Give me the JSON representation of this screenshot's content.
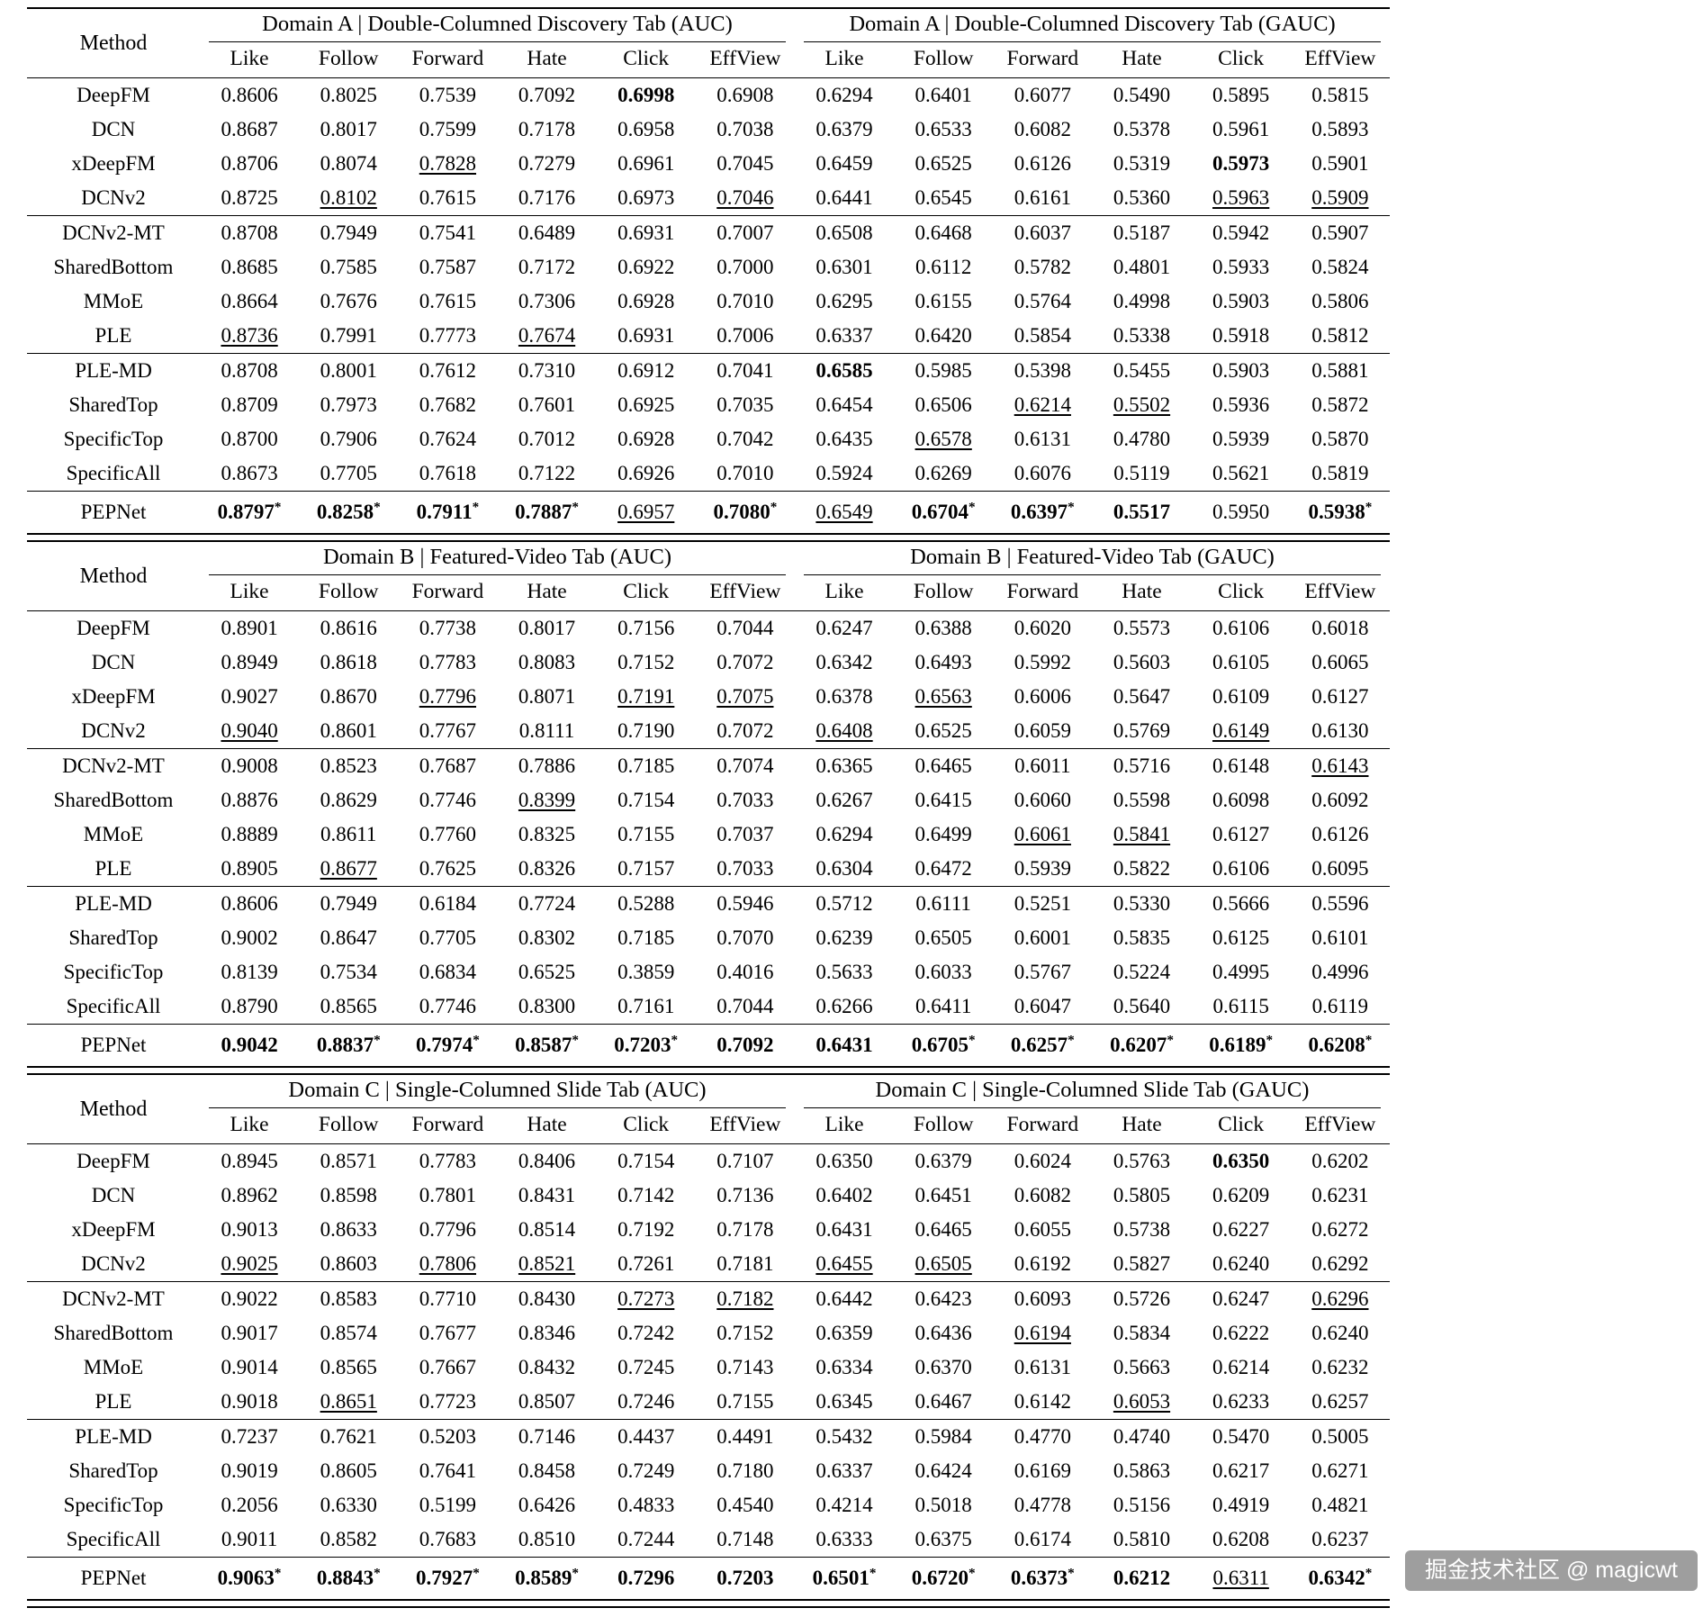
{
  "watermark": {
    "text": "掘金技术社区 @ magicwt"
  },
  "table_layout": {
    "method_header": "Method",
    "metrics": [
      "Like",
      "Follow",
      "Forward",
      "Hate",
      "Click",
      "EffView"
    ]
  },
  "tables": [
    {
      "id": "domain-a",
      "auc_title": "Domain A | Double-Columned Discovery Tab (AUC)",
      "gauc_title": "Domain A | Double-Columned Discovery Tab (GAUC)",
      "groups": [
        [
          {
            "method": "DeepFM",
            "auc": [
              "0.8606",
              "0.8025",
              "0.7539",
              "0.7092",
              "0.6998|b",
              "0.6908"
            ],
            "gauc": [
              "0.6294",
              "0.6401",
              "0.6077",
              "0.5490",
              "0.5895",
              "0.5815"
            ]
          },
          {
            "method": "DCN",
            "auc": [
              "0.8687",
              "0.8017",
              "0.7599",
              "0.7178",
              "0.6958",
              "0.7038"
            ],
            "gauc": [
              "0.6379",
              "0.6533",
              "0.6082",
              "0.5378",
              "0.5961",
              "0.5893"
            ]
          },
          {
            "method": "xDeepFM",
            "auc": [
              "0.8706",
              "0.8074",
              "0.7828|u",
              "0.7279",
              "0.6961",
              "0.7045"
            ],
            "gauc": [
              "0.6459",
              "0.6525",
              "0.6126",
              "0.5319",
              "0.5973|b",
              "0.5901"
            ]
          },
          {
            "method": "DCNv2",
            "auc": [
              "0.8725",
              "0.8102|u",
              "0.7615",
              "0.7176",
              "0.6973",
              "0.7046|u"
            ],
            "gauc": [
              "0.6441",
              "0.6545",
              "0.6161",
              "0.5360",
              "0.5963|u",
              "0.5909|u"
            ]
          }
        ],
        [
          {
            "method": "DCNv2-MT",
            "auc": [
              "0.8708",
              "0.7949",
              "0.7541",
              "0.6489",
              "0.6931",
              "0.7007"
            ],
            "gauc": [
              "0.6508",
              "0.6468",
              "0.6037",
              "0.5187",
              "0.5942",
              "0.5907"
            ]
          },
          {
            "method": "SharedBottom",
            "auc": [
              "0.8685",
              "0.7585",
              "0.7587",
              "0.7172",
              "0.6922",
              "0.7000"
            ],
            "gauc": [
              "0.6301",
              "0.6112",
              "0.5782",
              "0.4801",
              "0.5933",
              "0.5824"
            ]
          },
          {
            "method": "MMoE",
            "auc": [
              "0.8664",
              "0.7676",
              "0.7615",
              "0.7306",
              "0.6928",
              "0.7010"
            ],
            "gauc": [
              "0.6295",
              "0.6155",
              "0.5764",
              "0.4998",
              "0.5903",
              "0.5806"
            ]
          },
          {
            "method": "PLE",
            "auc": [
              "0.8736|u",
              "0.7991",
              "0.7773",
              "0.7674|u",
              "0.6931",
              "0.7006"
            ],
            "gauc": [
              "0.6337",
              "0.6420",
              "0.5854",
              "0.5338",
              "0.5918",
              "0.5812"
            ]
          }
        ],
        [
          {
            "method": "PLE-MD",
            "auc": [
              "0.8708",
              "0.8001",
              "0.7612",
              "0.7310",
              "0.6912",
              "0.7041"
            ],
            "gauc": [
              "0.6585|b",
              "0.5985",
              "0.5398",
              "0.5455",
              "0.5903",
              "0.5881"
            ]
          },
          {
            "method": "SharedTop",
            "auc": [
              "0.8709",
              "0.7973",
              "0.7682",
              "0.7601",
              "0.6925",
              "0.7035"
            ],
            "gauc": [
              "0.6454",
              "0.6506",
              "0.6214|u",
              "0.5502|u",
              "0.5936",
              "0.5872"
            ]
          },
          {
            "method": "SpecificTop",
            "auc": [
              "0.8700",
              "0.7906",
              "0.7624",
              "0.7012",
              "0.6928",
              "0.7042"
            ],
            "gauc": [
              "0.6435",
              "0.6578|u",
              "0.6131",
              "0.4780",
              "0.5939",
              "0.5870"
            ]
          },
          {
            "method": "SpecificAll",
            "auc": [
              "0.8673",
              "0.7705",
              "0.7618",
              "0.7122",
              "0.6926",
              "0.7010"
            ],
            "gauc": [
              "0.5924",
              "0.6269",
              "0.6076",
              "0.5119",
              "0.5621",
              "0.5819"
            ]
          }
        ],
        [
          {
            "method": "PEPNet",
            "auc": [
              "0.8797*|b",
              "0.8258*|b",
              "0.7911*|b",
              "0.7887*|b",
              "0.6957|u",
              "0.7080*|b"
            ],
            "gauc": [
              "0.6549|u",
              "0.6704*|b",
              "0.6397*|b",
              "0.5517|b",
              "0.5950",
              "0.5938*|b"
            ]
          }
        ]
      ]
    },
    {
      "id": "domain-b",
      "auc_title": "Domain B | Featured-Video Tab (AUC)",
      "gauc_title": "Domain B | Featured-Video Tab (GAUC)",
      "groups": [
        [
          {
            "method": "DeepFM",
            "auc": [
              "0.8901",
              "0.8616",
              "0.7738",
              "0.8017",
              "0.7156",
              "0.7044"
            ],
            "gauc": [
              "0.6247",
              "0.6388",
              "0.6020",
              "0.5573",
              "0.6106",
              "0.6018"
            ]
          },
          {
            "method": "DCN",
            "auc": [
              "0.8949",
              "0.8618",
              "0.7783",
              "0.8083",
              "0.7152",
              "0.7072"
            ],
            "gauc": [
              "0.6342",
              "0.6493",
              "0.5992",
              "0.5603",
              "0.6105",
              "0.6065"
            ]
          },
          {
            "method": "xDeepFM",
            "auc": [
              "0.9027",
              "0.8670",
              "0.7796|u",
              "0.8071",
              "0.7191|u",
              "0.7075|u"
            ],
            "gauc": [
              "0.6378",
              "0.6563|u",
              "0.6006",
              "0.5647",
              "0.6109",
              "0.6127"
            ]
          },
          {
            "method": "DCNv2",
            "auc": [
              "0.9040|u",
              "0.8601",
              "0.7767",
              "0.8111",
              "0.7190",
              "0.7072"
            ],
            "gauc": [
              "0.6408|u",
              "0.6525",
              "0.6059",
              "0.5769",
              "0.6149|u",
              "0.6130"
            ]
          }
        ],
        [
          {
            "method": "DCNv2-MT",
            "auc": [
              "0.9008",
              "0.8523",
              "0.7687",
              "0.7886",
              "0.7185",
              "0.7074"
            ],
            "gauc": [
              "0.6365",
              "0.6465",
              "0.6011",
              "0.5716",
              "0.6148",
              "0.6143|u"
            ]
          },
          {
            "method": "SharedBottom",
            "auc": [
              "0.8876",
              "0.8629",
              "0.7746",
              "0.8399|u",
              "0.7154",
              "0.7033"
            ],
            "gauc": [
              "0.6267",
              "0.6415",
              "0.6060",
              "0.5598",
              "0.6098",
              "0.6092"
            ]
          },
          {
            "method": "MMoE",
            "auc": [
              "0.8889",
              "0.8611",
              "0.7760",
              "0.8325",
              "0.7155",
              "0.7037"
            ],
            "gauc": [
              "0.6294",
              "0.6499",
              "0.6061|u",
              "0.5841|u",
              "0.6127",
              "0.6126"
            ]
          },
          {
            "method": "PLE",
            "auc": [
              "0.8905",
              "0.8677|u",
              "0.7625",
              "0.8326",
              "0.7157",
              "0.7033"
            ],
            "gauc": [
              "0.6304",
              "0.6472",
              "0.5939",
              "0.5822",
              "0.6106",
              "0.6095"
            ]
          }
        ],
        [
          {
            "method": "PLE-MD",
            "auc": [
              "0.8606",
              "0.7949",
              "0.6184",
              "0.7724",
              "0.5288",
              "0.5946"
            ],
            "gauc": [
              "0.5712",
              "0.6111",
              "0.5251",
              "0.5330",
              "0.5666",
              "0.5596"
            ]
          },
          {
            "method": "SharedTop",
            "auc": [
              "0.9002",
              "0.8647",
              "0.7705",
              "0.8302",
              "0.7185",
              "0.7070"
            ],
            "gauc": [
              "0.6239",
              "0.6505",
              "0.6001",
              "0.5835",
              "0.6125",
              "0.6101"
            ]
          },
          {
            "method": "SpecificTop",
            "auc": [
              "0.8139",
              "0.7534",
              "0.6834",
              "0.6525",
              "0.3859",
              "0.4016"
            ],
            "gauc": [
              "0.5633",
              "0.6033",
              "0.5767",
              "0.5224",
              "0.4995",
              "0.4996"
            ]
          },
          {
            "method": "SpecificAll",
            "auc": [
              "0.8790",
              "0.8565",
              "0.7746",
              "0.8300",
              "0.7161",
              "0.7044"
            ],
            "gauc": [
              "0.6266",
              "0.6411",
              "0.6047",
              "0.5640",
              "0.6115",
              "0.6119"
            ]
          }
        ],
        [
          {
            "method": "PEPNet",
            "auc": [
              "0.9042|b",
              "0.8837*|b",
              "0.7974*|b",
              "0.8587*|b",
              "0.7203*|b",
              "0.7092|b"
            ],
            "gauc": [
              "0.6431|b",
              "0.6705*|b",
              "0.6257*|b",
              "0.6207*|b",
              "0.6189*|b",
              "0.6208*|b"
            ]
          }
        ]
      ]
    },
    {
      "id": "domain-c",
      "auc_title": "Domain C | Single-Columned Slide Tab (AUC)",
      "gauc_title": "Domain C | Single-Columned Slide Tab (GAUC)",
      "groups": [
        [
          {
            "method": "DeepFM",
            "auc": [
              "0.8945",
              "0.8571",
              "0.7783",
              "0.8406",
              "0.7154",
              "0.7107"
            ],
            "gauc": [
              "0.6350",
              "0.6379",
              "0.6024",
              "0.5763",
              "0.6350|b",
              "0.6202"
            ]
          },
          {
            "method": "DCN",
            "auc": [
              "0.8962",
              "0.8598",
              "0.7801",
              "0.8431",
              "0.7142",
              "0.7136"
            ],
            "gauc": [
              "0.6402",
              "0.6451",
              "0.6082",
              "0.5805",
              "0.6209",
              "0.6231"
            ]
          },
          {
            "method": "xDeepFM",
            "auc": [
              "0.9013",
              "0.8633",
              "0.7796",
              "0.8514",
              "0.7192",
              "0.7178"
            ],
            "gauc": [
              "0.6431",
              "0.6465",
              "0.6055",
              "0.5738",
              "0.6227",
              "0.6272"
            ]
          },
          {
            "method": "DCNv2",
            "auc": [
              "0.9025|u",
              "0.8603",
              "0.7806|u",
              "0.8521|u",
              "0.7261",
              "0.7181"
            ],
            "gauc": [
              "0.6455|u",
              "0.6505|u",
              "0.6192",
              "0.5827",
              "0.6240",
              "0.6292"
            ]
          }
        ],
        [
          {
            "method": "DCNv2-MT",
            "auc": [
              "0.9022",
              "0.8583",
              "0.7710",
              "0.8430",
              "0.7273|u",
              "0.7182|u"
            ],
            "gauc": [
              "0.6442",
              "0.6423",
              "0.6093",
              "0.5726",
              "0.6247",
              "0.6296|u"
            ]
          },
          {
            "method": "SharedBottom",
            "auc": [
              "0.9017",
              "0.8574",
              "0.7677",
              "0.8346",
              "0.7242",
              "0.7152"
            ],
            "gauc": [
              "0.6359",
              "0.6436",
              "0.6194|u",
              "0.5834",
              "0.6222",
              "0.6240"
            ]
          },
          {
            "method": "MMoE",
            "auc": [
              "0.9014",
              "0.8565",
              "0.7667",
              "0.8432",
              "0.7245",
              "0.7143"
            ],
            "gauc": [
              "0.6334",
              "0.6370",
              "0.6131",
              "0.5663",
              "0.6214",
              "0.6232"
            ]
          },
          {
            "method": "PLE",
            "auc": [
              "0.9018",
              "0.8651|u",
              "0.7723",
              "0.8507",
              "0.7246",
              "0.7155"
            ],
            "gauc": [
              "0.6345",
              "0.6467",
              "0.6142",
              "0.6053|u",
              "0.6233",
              "0.6257"
            ]
          }
        ],
        [
          {
            "method": "PLE-MD",
            "auc": [
              "0.7237",
              "0.7621",
              "0.5203",
              "0.7146",
              "0.4437",
              "0.4491"
            ],
            "gauc": [
              "0.5432",
              "0.5984",
              "0.4770",
              "0.4740",
              "0.5470",
              "0.5005"
            ]
          },
          {
            "method": "SharedTop",
            "auc": [
              "0.9019",
              "0.8605",
              "0.7641",
              "0.8458",
              "0.7249",
              "0.7180"
            ],
            "gauc": [
              "0.6337",
              "0.6424",
              "0.6169",
              "0.5863",
              "0.6217",
              "0.6271"
            ]
          },
          {
            "method": "SpecificTop",
            "auc": [
              "0.2056",
              "0.6330",
              "0.5199",
              "0.6426",
              "0.4833",
              "0.4540"
            ],
            "gauc": [
              "0.4214",
              "0.5018",
              "0.4778",
              "0.5156",
              "0.4919",
              "0.4821"
            ]
          },
          {
            "method": "SpecificAll",
            "auc": [
              "0.9011",
              "0.8582",
              "0.7683",
              "0.8510",
              "0.7244",
              "0.7148"
            ],
            "gauc": [
              "0.6333",
              "0.6375",
              "0.6174",
              "0.5810",
              "0.6208",
              "0.6237"
            ]
          }
        ],
        [
          {
            "method": "PEPNet",
            "auc": [
              "0.9063*|b",
              "0.8843*|b",
              "0.7927*|b",
              "0.8589*|b",
              "0.7296|b",
              "0.7203|b"
            ],
            "gauc": [
              "0.6501*|b",
              "0.6720*|b",
              "0.6373*|b",
              "0.6212|b",
              "0.6311|u",
              "0.6342*|b"
            ]
          }
        ]
      ]
    }
  ]
}
